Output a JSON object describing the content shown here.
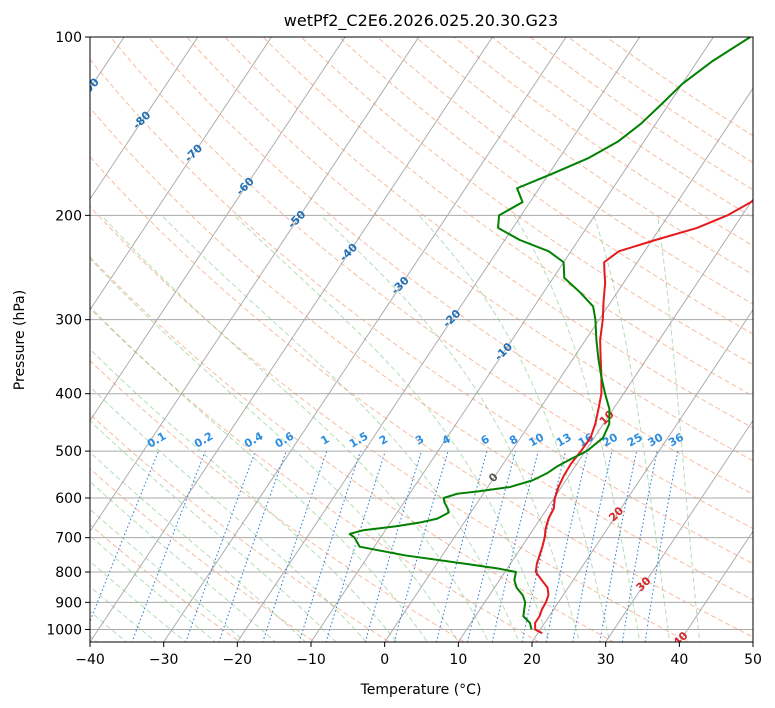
{
  "chart_data": {
    "type": "line",
    "title": "wetPf2_C2E6.2026.025.20.30.G23",
    "xlabel": "Temperature (°C)",
    "ylabel": "Pressure (hPa)",
    "xlim": [
      -40,
      50
    ],
    "ylim": [
      1050,
      100
    ],
    "y_scale": "log",
    "grid": true,
    "x_ticks": [
      "−40",
      "−30",
      "−20",
      "−10",
      "0",
      "10",
      "20",
      "30",
      "40",
      "50"
    ],
    "x_tick_values": [
      -40,
      -30,
      -20,
      -10,
      0,
      10,
      20,
      30,
      40,
      50
    ],
    "y_ticks": [
      "100",
      "200",
      "300",
      "400",
      "500",
      "600",
      "700",
      "800",
      "900",
      "1000"
    ],
    "y_tick_values": [
      100,
      200,
      300,
      400,
      500,
      600,
      700,
      800,
      900,
      1000
    ],
    "isotherm_labels": [
      "-100",
      "-90",
      "-80",
      "-70",
      "-60",
      "-50",
      "-40",
      "-30",
      "-20",
      "-10",
      "0",
      "10",
      "20",
      "30",
      "40"
    ],
    "isotherm_values": [
      -100,
      -90,
      -80,
      -70,
      -60,
      -50,
      -40,
      -30,
      -20,
      -10,
      0,
      10,
      20,
      30,
      40
    ],
    "mixing_ratio_labels": [
      "0.1",
      "0.2",
      "0.4",
      "0.6",
      "1",
      "1.5",
      "2",
      "3",
      "4",
      "6",
      "8",
      "10",
      "13",
      "16",
      "20",
      "25",
      "30",
      "36"
    ],
    "mixing_ratio_values": [
      0.1,
      0.2,
      0.4,
      0.6,
      1,
      1.5,
      2,
      3,
      4,
      6,
      8,
      10,
      13,
      16,
      20,
      25,
      30,
      36
    ],
    "series": [
      {
        "color": "#e41a1c",
        "pressure": [
          1015,
          1000,
          975,
          950,
          925,
          900,
          875,
          850,
          825,
          800,
          775,
          750,
          725,
          700,
          675,
          650,
          625,
          600,
          575,
          550,
          525,
          500,
          475,
          450,
          425,
          400,
          375,
          350,
          325,
          300,
          280,
          260,
          250,
          240,
          230,
          220,
          210,
          200,
          190,
          180,
          170,
          160,
          150,
          140,
          130,
          120,
          110,
          100
        ],
        "temperature": [
          20.6,
          19.3,
          18.7,
          18.7,
          18.4,
          18.3,
          18.0,
          17.2,
          15.7,
          14.2,
          13.6,
          13.2,
          12.8,
          12.3,
          11.6,
          11.1,
          10.9,
          10.1,
          9.6,
          9.3,
          9.2,
          9.4,
          9.5,
          8.9,
          8.0,
          7.0,
          5.5,
          3.8,
          2.0,
          0.5,
          -1.0,
          -2.5,
          -3.5,
          -4.5,
          -3.5,
          0.5,
          5.0,
          8.0,
          10.0,
          11.0,
          10.5,
          9.0,
          8.5,
          9.5,
          11.5,
          12.5,
          13.0,
          13.0
        ]
      },
      {
        "color": "#008000",
        "pressure": [
          1000,
          975,
          950,
          925,
          900,
          875,
          850,
          825,
          800,
          790,
          775,
          750,
          725,
          700,
          690,
          680,
          670,
          660,
          650,
          635,
          625,
          610,
          600,
          590,
          585,
          575,
          560,
          545,
          530,
          515,
          500,
          475,
          450,
          425,
          400,
          375,
          350,
          325,
          300,
          285,
          270,
          255,
          240,
          230,
          220,
          210,
          200,
          190,
          180,
          170,
          160,
          150,
          140,
          130,
          120,
          110,
          100
        ],
        "dewpoint": [
          18.8,
          18.0,
          16.5,
          16.0,
          15.5,
          14.5,
          13.0,
          12.0,
          11.5,
          9.0,
          4.0,
          -5.0,
          -12.0,
          -13.5,
          -14.5,
          -13.0,
          -9.0,
          -6.0,
          -4.0,
          -3.0,
          -3.5,
          -4.5,
          -5.0,
          -3.5,
          -1.0,
          3.0,
          5.5,
          6.8,
          7.6,
          8.8,
          10.2,
          11.2,
          10.8,
          9.5,
          7.5,
          5.5,
          3.5,
          1.5,
          -0.5,
          -2.0,
          -5.0,
          -8.5,
          -10.0,
          -13.0,
          -18.0,
          -22.0,
          -23.0,
          -21.0,
          -23.0,
          -19.5,
          -16.0,
          -13.5,
          -12.0,
          -11.0,
          -10.0,
          -8.0,
          -5.0
        ]
      }
    ]
  }
}
